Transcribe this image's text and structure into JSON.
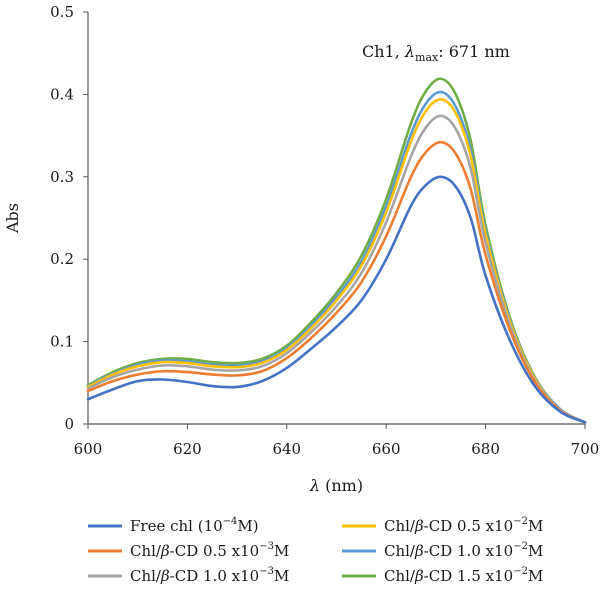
{
  "chart_data": {
    "type": "line",
    "title": "",
    "annotation": {
      "prefix": "Ch1, ",
      "lambda": "λ",
      "sub": "max",
      "suffix": ": 671 nm"
    },
    "xlabel": {
      "symbol": "λ",
      "unit": " (nm)"
    },
    "ylabel": "Abs",
    "xlim": [
      600,
      700
    ],
    "ylim": [
      0,
      0.5
    ],
    "xticks": [
      600,
      620,
      640,
      660,
      680,
      700
    ],
    "yticks": [
      0,
      0.1,
      0.2,
      0.3,
      0.4,
      0.5
    ],
    "xtick_labels": [
      "600",
      "620",
      "640",
      "660",
      "680",
      "700"
    ],
    "ytick_labels": [
      "0",
      "0.1",
      "0.2",
      "0.3",
      "0.4",
      "0.5"
    ],
    "grid": false,
    "legend_position": "bottom",
    "x": [
      600,
      605,
      610,
      615,
      620,
      625,
      630,
      635,
      640,
      645,
      650,
      655,
      660,
      665,
      668,
      671,
      674,
      677,
      680,
      685,
      690,
      695,
      700
    ],
    "series": [
      {
        "name": "Free chl (10⁻⁴M)",
        "legend": {
          "pre": "Free chl (10",
          "sup": "−4",
          "post": "M)",
          "beta": false
        },
        "color": "#4472c4",
        "values": [
          0.03,
          0.042,
          0.052,
          0.054,
          0.051,
          0.046,
          0.045,
          0.052,
          0.068,
          0.092,
          0.118,
          0.15,
          0.2,
          0.265,
          0.29,
          0.3,
          0.288,
          0.25,
          0.18,
          0.1,
          0.045,
          0.015,
          0.002
        ]
      },
      {
        "name": "Chl/β-CD 0.5 x10⁻³M",
        "legend": {
          "pre": "Chl/",
          "post": "-CD 0.5 x10",
          "sup": "−3",
          "tail": "M",
          "beta": true
        },
        "color": "#ed7d31",
        "values": [
          0.04,
          0.052,
          0.06,
          0.064,
          0.063,
          0.06,
          0.059,
          0.064,
          0.08,
          0.105,
          0.135,
          0.172,
          0.228,
          0.3,
          0.33,
          0.342,
          0.328,
          0.285,
          0.205,
          0.112,
          0.05,
          0.016,
          0.002
        ]
      },
      {
        "name": "Chl/β-CD 1.0 x10⁻³M",
        "legend": {
          "pre": "Chl/",
          "post": "-CD 1.0 x10",
          "sup": "−3",
          "tail": "M",
          "beta": true
        },
        "color": "#a5a5a5",
        "values": [
          0.043,
          0.057,
          0.066,
          0.071,
          0.07,
          0.066,
          0.065,
          0.07,
          0.086,
          0.112,
          0.143,
          0.183,
          0.245,
          0.325,
          0.36,
          0.374,
          0.358,
          0.31,
          0.22,
          0.118,
          0.052,
          0.017,
          0.002
        ]
      },
      {
        "name": "Chl/β-CD 0.5 x10⁻²M",
        "legend": {
          "pre": "Chl/",
          "post": "-CD 0.5 x10",
          "sup": "−2",
          "tail": "M",
          "beta": true
        },
        "color": "#ffc000",
        "values": [
          0.045,
          0.06,
          0.07,
          0.075,
          0.074,
          0.07,
          0.069,
          0.074,
          0.09,
          0.117,
          0.15,
          0.192,
          0.257,
          0.343,
          0.38,
          0.394,
          0.377,
          0.325,
          0.23,
          0.122,
          0.054,
          0.017,
          0.002
        ]
      },
      {
        "name": "Chl/β-CD 1.0 x10⁻²M",
        "legend": {
          "pre": "Chl/",
          "post": "-CD 1.0 x10",
          "sup": "−2",
          "tail": "M",
          "beta": true
        },
        "color": "#5b9bd5",
        "values": [
          0.046,
          0.061,
          0.072,
          0.077,
          0.076,
          0.072,
          0.071,
          0.076,
          0.092,
          0.12,
          0.154,
          0.197,
          0.264,
          0.352,
          0.389,
          0.403,
          0.385,
          0.332,
          0.234,
          0.124,
          0.055,
          0.018,
          0.002
        ]
      },
      {
        "name": "Chl/β-CD 1.5 x10⁻²M",
        "legend": {
          "pre": "Chl/",
          "post": "-CD 1.5 x10",
          "sup": "−2",
          "tail": "M",
          "beta": true
        },
        "color": "#70ad47",
        "values": [
          0.047,
          0.063,
          0.074,
          0.079,
          0.079,
          0.075,
          0.074,
          0.079,
          0.095,
          0.124,
          0.159,
          0.204,
          0.273,
          0.365,
          0.404,
          0.419,
          0.4,
          0.344,
          0.241,
          0.127,
          0.056,
          0.018,
          0.002
        ]
      }
    ]
  }
}
